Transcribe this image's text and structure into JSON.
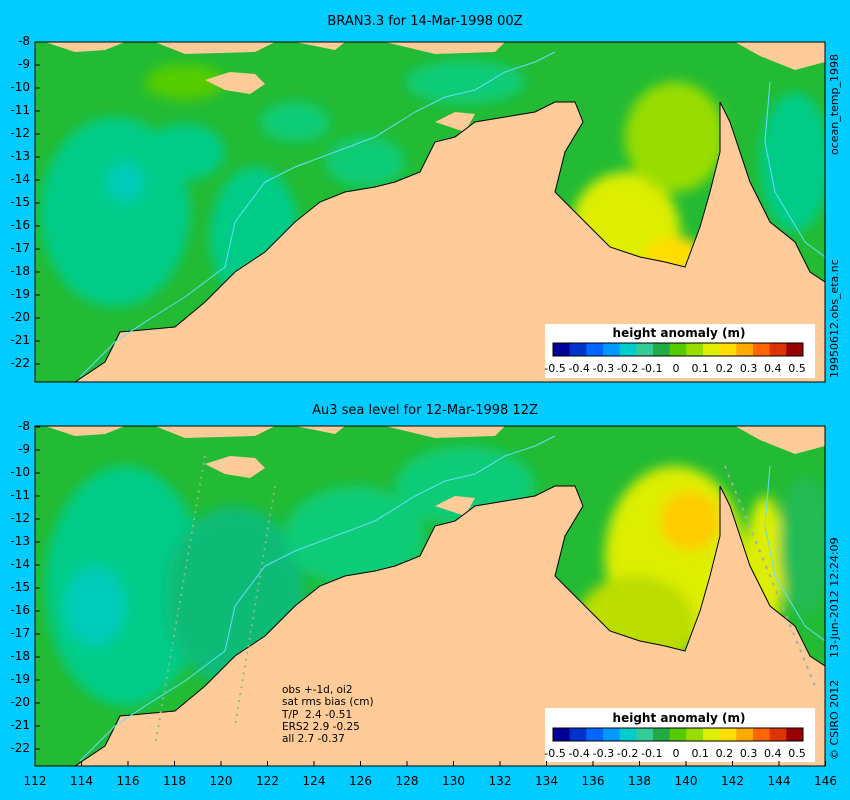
{
  "panels": {
    "top_title": "BRAN3.3 for 14-Mar-1998 00Z",
    "bottom_title": "Au3 sea level  for 12-Mar-1998 12Z"
  },
  "right_labels": {
    "label_1": "ocean_temp_1998",
    "label_2": "19950612.obs_eta.nc",
    "label_3": "13-Jun-2012 12:24:09",
    "label_4": "© CSIRO 2012"
  },
  "colorbar": {
    "title": "height anomaly (m)",
    "tick_labels": [
      "-0.5",
      "-0.4",
      "-0.3",
      "-0.2",
      "-0.1",
      "0",
      "0.1",
      "0.2",
      "0.3",
      "0.4",
      "0.5"
    ],
    "colors": [
      "#000099",
      "#0033cc",
      "#0066ff",
      "#0099ff",
      "#00cccc",
      "#33cc99",
      "#22aa44",
      "#55cc00",
      "#99dd00",
      "#ddee00",
      "#ffdd00",
      "#ffaa00",
      "#ff6600",
      "#dd3300",
      "#990000"
    ]
  },
  "axes": {
    "y_ticks": [
      "-8",
      "-9",
      "-10",
      "-11",
      "-12",
      "-13",
      "-14",
      "-15",
      "-16",
      "-17",
      "-18",
      "-19",
      "-20",
      "-21",
      "-22"
    ],
    "x_ticks": [
      "112",
      "114",
      "116",
      "118",
      "120",
      "122",
      "124",
      "126",
      "128",
      "130",
      "132",
      "134",
      "136",
      "138",
      "140",
      "142",
      "144",
      "146"
    ]
  },
  "stats": {
    "lines": [
      "obs +-1d, oi2",
      "sat rms bias (cm)",
      "T/P  2.4 -0.51",
      "ERS2 2.9 -0.25",
      "all 2.7 -0.37"
    ]
  },
  "colors": {
    "background": "#00ccff",
    "land": "#ffcc99",
    "ocean_base": "#22bb33",
    "ocean_teal": "#00cc99",
    "ocean_yellow": "#ddee00",
    "ocean_orange": "#ffbb00"
  }
}
